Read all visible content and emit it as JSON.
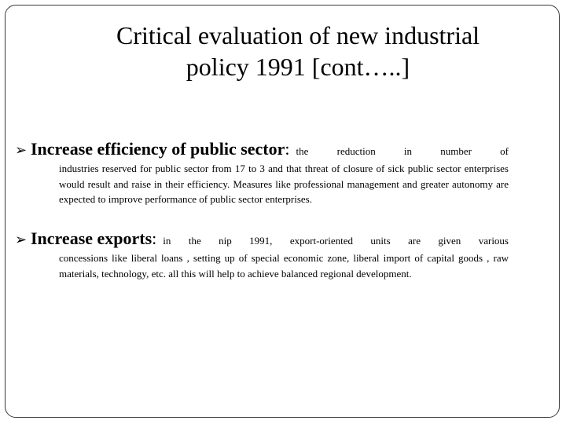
{
  "title": {
    "line1": "Critical evaluation of new industrial",
    "line2": "policy 1991 [cont…..]"
  },
  "bullets": [
    {
      "icon": "arrow-bullet-icon",
      "heading": "Increase efficiency of public sector",
      "separator": ":",
      "lead": "the reduction in number of",
      "text": "industries reserved for public sector from 17 to 3 and that threat of closure of sick public sector enterprises would result and raise in their efficiency. Measures like professional management and greater autonomy are expected to improve performance of public sector enterprises."
    },
    {
      "icon": "arrow-bullet-icon",
      "heading": "Increase exports",
      "separator": ":",
      "lead": "in the nip 1991, export-oriented units are given various",
      "text": "concessions like liberal loans , setting up of special economic  zone, liberal import of capital goods , raw materials, technology, etc. all this will help to achieve balanced regional development."
    }
  ]
}
